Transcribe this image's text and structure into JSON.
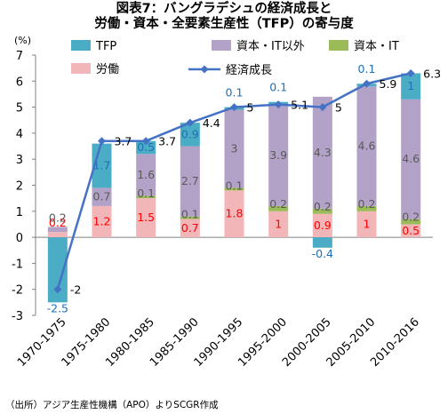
{
  "title_lines": [
    "図表7：バングラデシュの経済成長と",
    "労働・資本・全要素生産性（TFP）の寄与度"
  ],
  "source": "（出所）アジア生産性機構（APO）よりSCGR作成",
  "chart_data": {
    "type": "bar",
    "stacked": true,
    "y_unit_label": "(%)",
    "ylim": [
      -3,
      7
    ],
    "yticks": [
      -3,
      -2,
      -1,
      0,
      1,
      2,
      3,
      4,
      5,
      6,
      7
    ],
    "categories": [
      "1970-1975",
      "1975-1980",
      "1980-1985",
      "1985-1990",
      "1990-1995",
      "1995-2000",
      "2000-2005",
      "2005-2010",
      "2010-2016"
    ],
    "series": [
      {
        "name": "労働",
        "color": "#F2B6B8",
        "label_color": "#FF0000",
        "values": [
          0.2,
          1.2,
          1.5,
          0.7,
          1.8,
          1.0,
          0.9,
          1.0,
          0.5
        ]
      },
      {
        "name": "資本・IT",
        "color": "#9BBB59",
        "label_color": "#595959",
        "values": [
          0.0,
          0.0,
          0.1,
          0.1,
          0.1,
          0.2,
          0.2,
          0.2,
          0.2
        ]
      },
      {
        "name": "資本・IT以外",
        "color": "#B3A2C7",
        "label_color": "#595959",
        "values": [
          0.2,
          0.7,
          1.6,
          2.7,
          3.0,
          3.9,
          4.3,
          4.6,
          4.6
        ]
      },
      {
        "name": "TFP",
        "color": "#4BACC6",
        "label_color": "#1F6FB5",
        "values": [
          -2.5,
          1.7,
          0.5,
          0.9,
          0.1,
          0.1,
          -0.4,
          0.1,
          1.0
        ]
      }
    ],
    "value_labels": {
      "労働": [
        "0.2",
        "1.2",
        "1.5",
        "0.7",
        "1.8",
        "1",
        "0.9",
        "1",
        "0.5"
      ],
      "資本・IT": [
        "",
        "",
        "0.1",
        "0.1",
        "0.1",
        "0.2",
        "0.2",
        "0.2",
        "0.2"
      ],
      "資本・IT以外": [
        "0.2",
        "0.7",
        "1.6",
        "2.7",
        "3",
        "3.9",
        "4.3",
        "4.6",
        "4.6"
      ],
      "TFP": [
        "-2.5",
        "1.7",
        "0.5",
        "0.9",
        "0.1",
        "0.1",
        "-0.4",
        "0.1",
        "1"
      ]
    },
    "line": {
      "name": "経済成長",
      "color": "#4472C4",
      "values": [
        -2,
        3.7,
        3.7,
        4.4,
        5,
        5.1,
        5,
        5.9,
        6.3
      ],
      "labels": [
        "-2",
        "3.7",
        "3.7",
        "4.4",
        "5",
        "5.1",
        "5",
        "5.9",
        "6.3"
      ]
    },
    "legend": [
      "TFP",
      "資本・IT以外",
      "資本・IT",
      "労働",
      "経済成長"
    ],
    "grid": false
  }
}
